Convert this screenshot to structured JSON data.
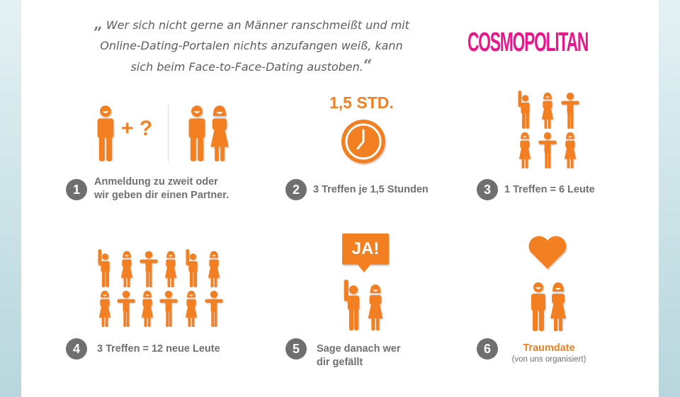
{
  "quote": {
    "open_mark": "„",
    "lines": [
      "Wer sich nicht gerne an Männer ranschmeißt und mit",
      "Online-Dating-Portalen nichts anzufangen weiß, kann",
      "sich beim Face-to-Face-Dating austoben."
    ],
    "close_mark": "“"
  },
  "logo": "COSMOPOLITAN",
  "colors": {
    "accent": "#f28021",
    "text": "#707070",
    "logo": "#e8188c"
  },
  "steps": [
    {
      "number": "1",
      "lines": [
        "Anmeldung zu zweit oder",
        "wir geben dir einen Partner."
      ],
      "icon_text": "+ ?"
    },
    {
      "number": "2",
      "lines": [
        "3 Treffen je 1,5 Stunden"
      ],
      "icon_text": "1,5 STD."
    },
    {
      "number": "3",
      "lines": [
        "1 Treffen = 6 Leute"
      ]
    },
    {
      "number": "4",
      "lines": [
        "3 Treffen = 12 neue Leute"
      ]
    },
    {
      "number": "5",
      "lines": [
        "Sage danach wer",
        "dir gefällt"
      ],
      "icon_text": "JA!"
    },
    {
      "number": "6",
      "lines": [
        "Traumdate",
        "(von uns organisiert)"
      ]
    }
  ]
}
